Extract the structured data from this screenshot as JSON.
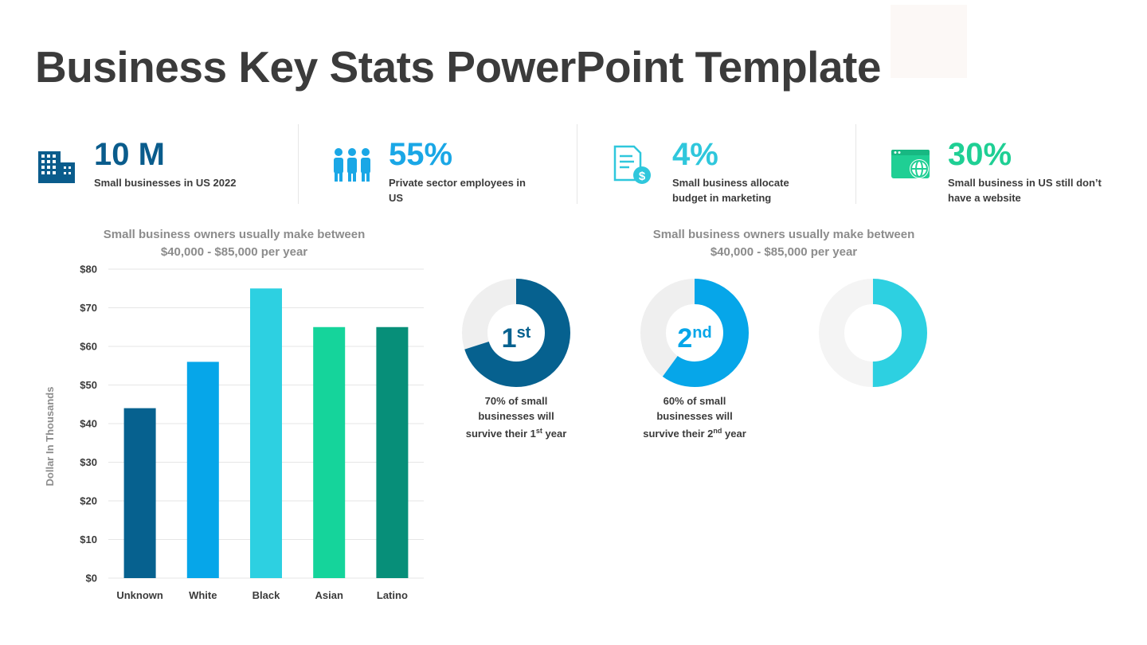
{
  "title": "Business Key Stats PowerPoint Template",
  "stats": [
    {
      "value": "10 M",
      "desc": "Small businesses in US 2022",
      "color": "#0a5c8c",
      "icon": "building-icon"
    },
    {
      "value": "55%",
      "desc": "Private sector employees in US",
      "color": "#1aa7e6",
      "icon": "people-icon"
    },
    {
      "value": "4%",
      "desc": "Small business allocate budget in marketing",
      "color": "#2fc7dc",
      "icon": "document-money-icon"
    },
    {
      "value": "30%",
      "desc": "Small business in US still don’t have a website",
      "color": "#1fcf94",
      "icon": "web-globe-icon"
    }
  ],
  "left_caption": {
    "line1": "Small business owners usually make between",
    "line2": "$40,000 - $85,000 per year"
  },
  "right_caption": {
    "line1": "Small business owners usually make between",
    "line2": "$40,000 - $85,000 per year"
  },
  "donuts": [
    {
      "rank_num": "1",
      "rank_sup": "st",
      "percent": 70,
      "color": "#06618f",
      "label_line1": "70% of small",
      "label_line2": "businesses will",
      "label_line3_pre": "survive their 1",
      "label_line3_sup": "st",
      "label_line3_post": " year"
    },
    {
      "rank_num": "2",
      "rank_sup": "nd",
      "percent": 60,
      "color": "#06a6e9",
      "label_line1": "60% of small",
      "label_line2": "businesses will",
      "label_line3_pre": "survive their 2",
      "label_line3_sup": "nd",
      "label_line3_post": " year"
    },
    {
      "percent": 50,
      "color": "#2dd0e1"
    }
  ],
  "chart_data": {
    "type": "bar",
    "categories": [
      "Unknown",
      "White",
      "Black",
      "Asian",
      "Latino"
    ],
    "values": [
      44,
      56,
      75,
      65,
      65
    ],
    "colors": [
      "#06618f",
      "#06a6e9",
      "#2dd0e1",
      "#15d49b",
      "#078f79"
    ],
    "ylabel": "Dollar In Thousands",
    "yticks": [
      "$0",
      "$10",
      "$20",
      "$30",
      "$40",
      "$50",
      "$60",
      "$70",
      "$80"
    ],
    "ylim": [
      0,
      80
    ],
    "grid": true
  }
}
